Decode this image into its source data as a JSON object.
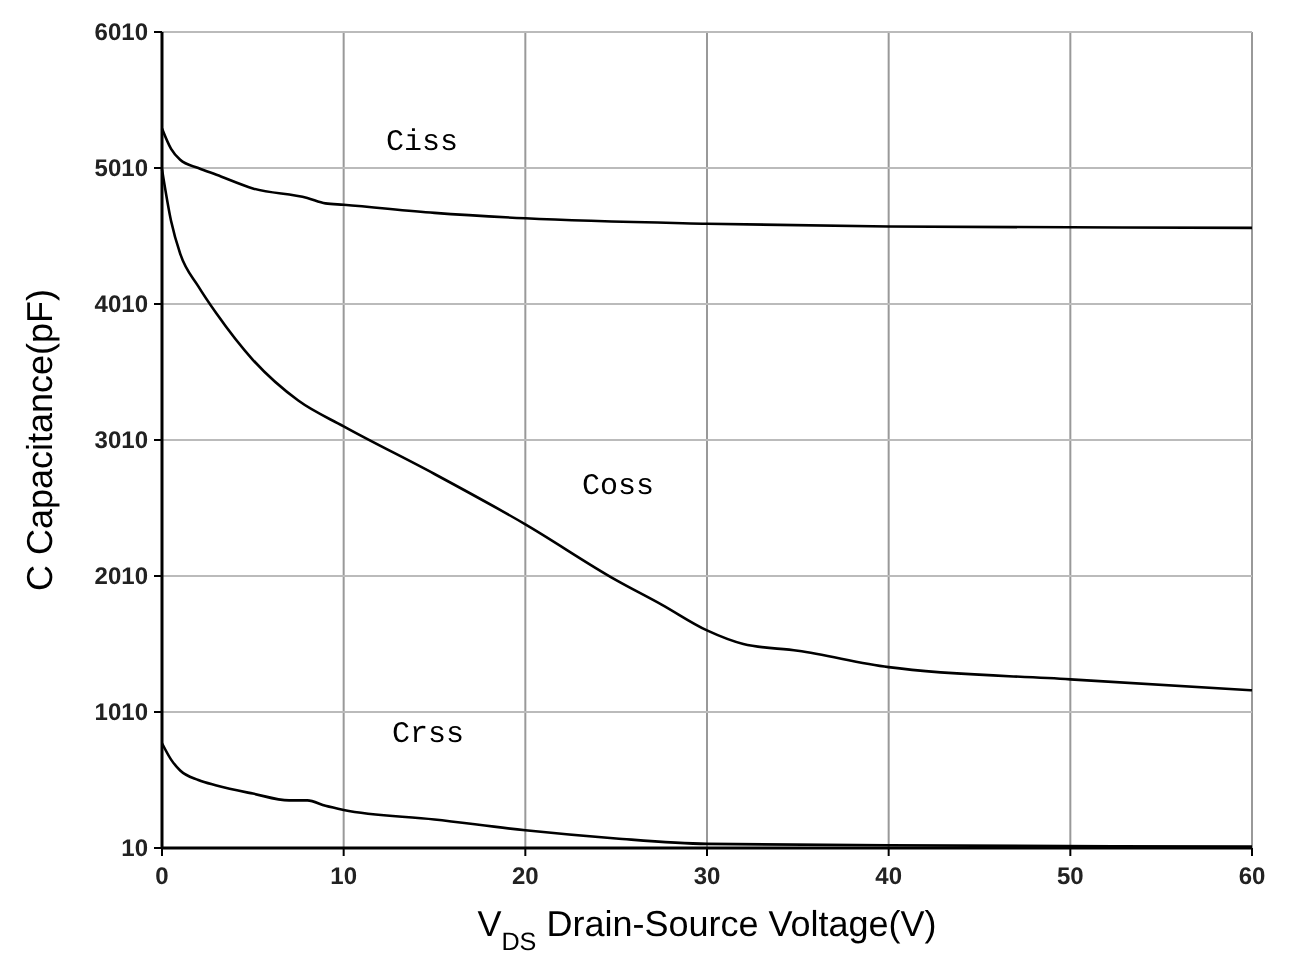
{
  "chart_data": {
    "type": "line",
    "xlabel": "V$_{DS}$  Drain-Source Voltage(V)",
    "ylabel": "C Capacitance(pF)",
    "xlim": [
      0,
      60
    ],
    "ylim": [
      10,
      6010
    ],
    "xticks": [
      0,
      10,
      20,
      30,
      40,
      50,
      60
    ],
    "yticks": [
      10,
      1010,
      2010,
      3010,
      4010,
      5010,
      6010
    ],
    "grid": true,
    "marker": "none",
    "line_style": "solid",
    "series": [
      {
        "name": "Ciss",
        "color": "#000000",
        "x": [
          0,
          0.5,
          1,
          2,
          3,
          5,
          8,
          9,
          10,
          15,
          20,
          30,
          40,
          60
        ],
        "values": [
          5300,
          5150,
          5070,
          5010,
          4960,
          4860,
          4790,
          4750,
          4740,
          4680,
          4640,
          4600,
          4580,
          4570
        ]
      },
      {
        "name": "Coss",
        "color": "#000000",
        "x": [
          0,
          0.5,
          1,
          2,
          3,
          5,
          7.5,
          10,
          15,
          20,
          25,
          27.5,
          30,
          32,
          35,
          40,
          50,
          60
        ],
        "values": [
          5000,
          4620,
          4380,
          4140,
          3940,
          3600,
          3300,
          3110,
          2760,
          2390,
          1980,
          1800,
          1610,
          1510,
          1460,
          1340,
          1250,
          1170
        ]
      },
      {
        "name": "Crss",
        "color": "#000000",
        "x": [
          0,
          0.5,
          1,
          2,
          3,
          5,
          7,
          8,
          9,
          10,
          15,
          20,
          25,
          30,
          40,
          60
        ],
        "values": [
          780,
          660,
          580,
          510,
          470,
          410,
          360,
          360,
          320,
          290,
          220,
          140,
          80,
          40,
          30,
          20
        ]
      }
    ]
  }
}
